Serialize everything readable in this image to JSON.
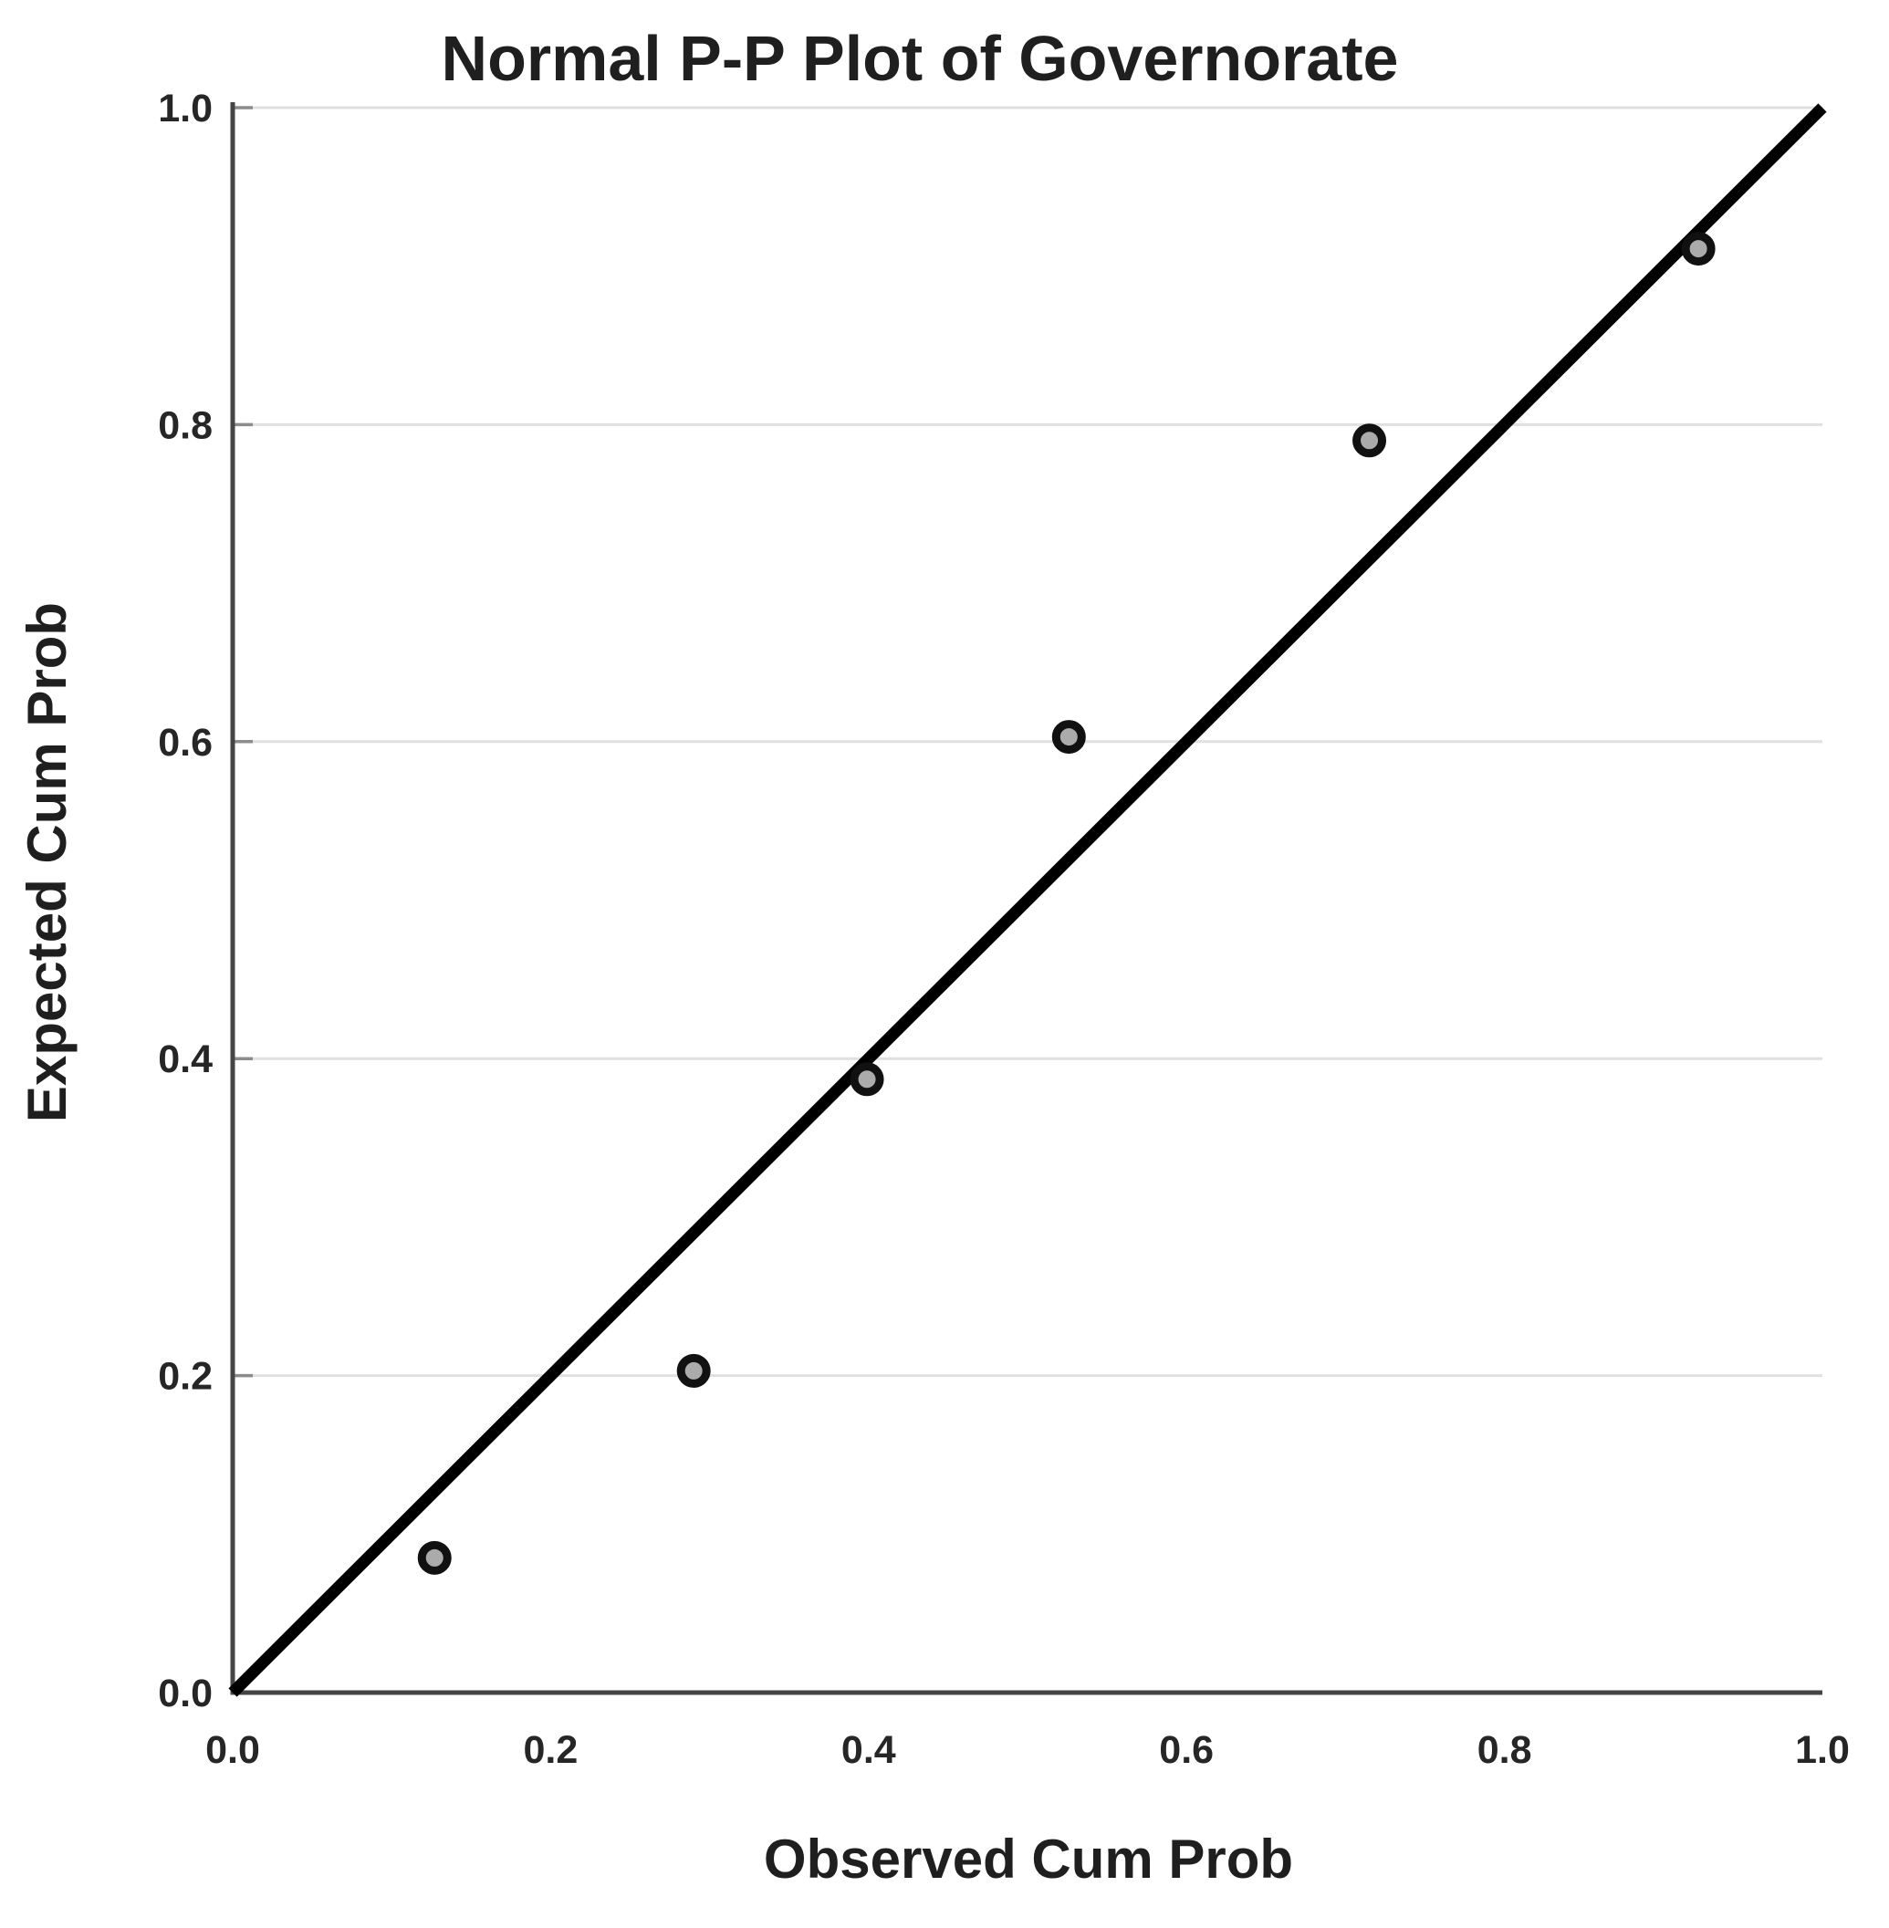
{
  "chart_data": {
    "type": "scatter",
    "title": "Normal P-P Plot of Governorate",
    "xlabel": "Observed Cum Prob",
    "ylabel": "Expected Cum Prob",
    "xlim": [
      0.0,
      1.0
    ],
    "ylim": [
      0.0,
      1.0
    ],
    "x_ticks": [
      "0.0",
      "0.2",
      "0.4",
      "0.6",
      "0.8",
      "1.0"
    ],
    "y_ticks": [
      "0.0",
      "0.2",
      "0.4",
      "0.6",
      "0.8",
      "1.0"
    ],
    "grid": "horizontal gridlines at 0.2 intervals, no vertical gridlines",
    "legend": "none",
    "points": [
      {
        "observed": 0.127,
        "expected": 0.085
      },
      {
        "observed": 0.29,
        "expected": 0.203
      },
      {
        "observed": 0.399,
        "expected": 0.387
      },
      {
        "observed": 0.526,
        "expected": 0.603
      },
      {
        "observed": 0.715,
        "expected": 0.79
      },
      {
        "observed": 0.922,
        "expected": 0.911
      }
    ],
    "reference_line": {
      "from": [
        0.0,
        0.0
      ],
      "to": [
        1.0,
        1.0
      ]
    },
    "colors": {
      "background": "#ffffff",
      "marker_fill": "#ababab",
      "marker_stroke": "#111111",
      "reference_line": "#000000",
      "axis_line": "#454545",
      "gridline": "#e0e0e0",
      "tick_mark": "#8c8c8c",
      "text": "#1f1f1f"
    }
  }
}
